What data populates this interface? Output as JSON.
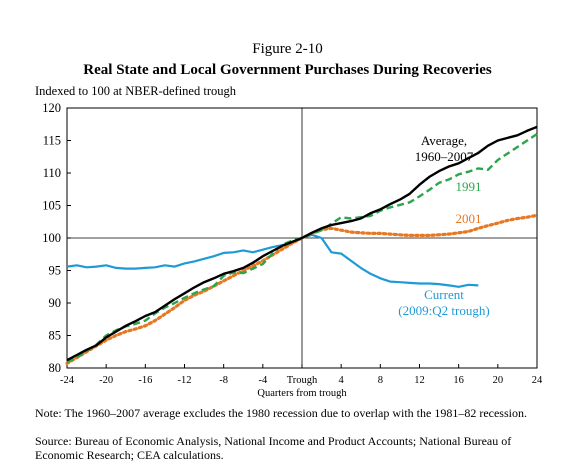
{
  "figure": {
    "label": "Figure 2-10",
    "title": "Real State and Local Government Purchases During Recoveries",
    "subtitle": "Indexed to 100 at NBER-defined trough",
    "note": "Note: The 1960–2007 average excludes the 1980 recession due to overlap with the 1981–82 recession.",
    "source": "Source: Bureau of Economic Analysis, National Income and Product Accounts; National Bureau of Economic Research; CEA calculations."
  },
  "chart_data": {
    "type": "line",
    "xlabel": "Quarters from trough",
    "ylabel": "",
    "xlim": [
      -24,
      24
    ],
    "ylim": [
      80,
      120
    ],
    "x_ticks": [
      -24,
      -20,
      -16,
      -12,
      -8,
      -4,
      0,
      4,
      8,
      12,
      16,
      20,
      24
    ],
    "x_tick_labels": [
      "-24",
      "-20",
      "-16",
      "-12",
      "-8",
      "-4",
      "Trough",
      "4",
      "8",
      "12",
      "16",
      "20",
      "24"
    ],
    "y_ticks": [
      80,
      85,
      90,
      95,
      100,
      105,
      110,
      115,
      120
    ],
    "y_tick_labels": [
      "80",
      "85",
      "90",
      "95",
      "100",
      "105",
      "110",
      "115",
      "120"
    ],
    "reference_line_y": 100,
    "trough_line_x": 0,
    "series": [
      {
        "name": "Average, 1960–2007",
        "label_lines": [
          "Average,",
          "1960–2007"
        ],
        "color": "#000000",
        "style": "solid",
        "x": [
          -24,
          -23,
          -22,
          -21,
          -20,
          -19,
          -18,
          -17,
          -16,
          -15,
          -14,
          -13,
          -12,
          -11,
          -10,
          -9,
          -8,
          -7,
          -6,
          -5,
          -4,
          -3,
          -2,
          -1,
          0,
          1,
          2,
          3,
          4,
          5,
          6,
          7,
          8,
          9,
          10,
          11,
          12,
          13,
          14,
          15,
          16,
          17,
          18,
          19,
          20,
          21,
          22,
          23,
          24
        ],
        "values": [
          81.2,
          82.0,
          82.8,
          83.5,
          84.7,
          85.6,
          86.5,
          87.2,
          88.0,
          88.6,
          89.6,
          90.6,
          91.5,
          92.4,
          93.2,
          93.8,
          94.5,
          94.9,
          95.4,
          96.2,
          97.2,
          98.0,
          98.8,
          99.4,
          100,
          100.8,
          101.5,
          102.0,
          102.3,
          102.6,
          103.0,
          103.8,
          104.4,
          105.2,
          105.9,
          106.8,
          108.2,
          109.4,
          110.3,
          111.0,
          111.5,
          112.3,
          113.1,
          114.2,
          115.0,
          115.4,
          115.8,
          116.5,
          117.1
        ]
      },
      {
        "name": "1991",
        "label_lines": [
          "1991"
        ],
        "color": "#2ca54b",
        "style": "dashed",
        "x": [
          -24,
          -23,
          -22,
          -21,
          -20,
          -19,
          -18,
          -17,
          -16,
          -15,
          -14,
          -13,
          -12,
          -11,
          -10,
          -9,
          -8,
          -7,
          -6,
          -5,
          -4,
          -3,
          -2,
          -1,
          0,
          1,
          2,
          3,
          4,
          5,
          6,
          7,
          8,
          9,
          10,
          11,
          12,
          13,
          14,
          15,
          16,
          17,
          18,
          19,
          20,
          21,
          22,
          23,
          24
        ],
        "values": [
          80.9,
          81.6,
          82.6,
          83.6,
          85.0,
          85.8,
          86.4,
          86.8,
          87.3,
          88.4,
          89.3,
          90.0,
          90.8,
          91.5,
          92.1,
          92.6,
          94.2,
          94.7,
          94.6,
          95.3,
          96.0,
          97.6,
          99.0,
          99.6,
          100,
          100.6,
          101.2,
          102.2,
          103.2,
          103.0,
          103.2,
          103.4,
          104.2,
          104.7,
          105.1,
          105.5,
          106.4,
          107.4,
          108.5,
          109.0,
          109.8,
          110.2,
          110.7,
          110.5,
          112.0,
          113.0,
          114.0,
          115.0,
          116.0
        ]
      },
      {
        "name": "2001",
        "label_lines": [
          "2001"
        ],
        "color": "#e87722",
        "style": "dotted",
        "x": [
          -24,
          -23,
          -22,
          -21,
          -20,
          -19,
          -18,
          -17,
          -16,
          -15,
          -14,
          -13,
          -12,
          -11,
          -10,
          -9,
          -8,
          -7,
          -6,
          -5,
          -4,
          -3,
          -2,
          -1,
          0,
          1,
          2,
          3,
          4,
          5,
          6,
          7,
          8,
          9,
          10,
          11,
          12,
          13,
          14,
          15,
          16,
          17,
          18,
          19,
          20,
          21,
          22,
          23,
          24
        ],
        "values": [
          80.7,
          81.6,
          82.5,
          83.4,
          84.3,
          85.0,
          85.6,
          86.0,
          86.5,
          87.3,
          88.3,
          89.3,
          90.4,
          91.2,
          91.8,
          92.6,
          93.4,
          94.2,
          95.0,
          95.7,
          96.5,
          97.4,
          98.3,
          99.2,
          100,
          100.7,
          101.3,
          101.5,
          101.2,
          100.9,
          100.8,
          100.7,
          100.7,
          100.6,
          100.5,
          100.4,
          100.4,
          100.4,
          100.5,
          100.6,
          100.8,
          101.0,
          101.5,
          101.9,
          102.3,
          102.7,
          103.0,
          103.2,
          103.5
        ]
      },
      {
        "name": "Current (2009:Q2 trough)",
        "label_lines": [
          "Current",
          "(2009:Q2 trough)"
        ],
        "color": "#1f9ad6",
        "style": "solid",
        "x": [
          -24,
          -23,
          -22,
          -21,
          -20,
          -19,
          -18,
          -17,
          -16,
          -15,
          -14,
          -13,
          -12,
          -11,
          -10,
          -9,
          -8,
          -7,
          -6,
          -5,
          -4,
          -3,
          -2,
          -1,
          0,
          1,
          2,
          3,
          4,
          5,
          6,
          7,
          8,
          9,
          10,
          11,
          12,
          13,
          14,
          15,
          16,
          17,
          18
        ],
        "values": [
          95.6,
          95.8,
          95.5,
          95.6,
          95.8,
          95.4,
          95.3,
          95.3,
          95.4,
          95.5,
          95.8,
          95.6,
          96.1,
          96.4,
          96.8,
          97.2,
          97.7,
          97.8,
          98.1,
          97.8,
          98.2,
          98.6,
          98.9,
          99.2,
          100,
          100.5,
          100.0,
          97.8,
          97.6,
          96.5,
          95.4,
          94.5,
          93.8,
          93.3,
          93.2,
          93.1,
          93.0,
          93.0,
          92.9,
          92.7,
          92.5,
          92.8,
          92.7
        ]
      }
    ]
  }
}
